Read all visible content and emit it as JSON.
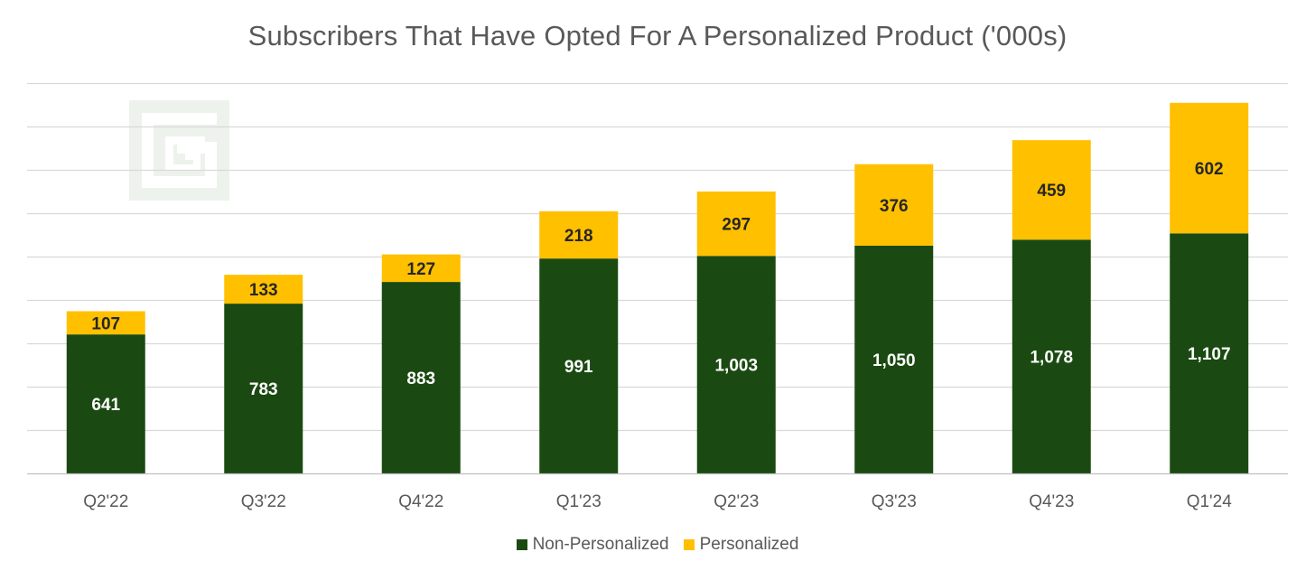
{
  "chart_data": {
    "type": "bar",
    "stacked": true,
    "title": "Subscribers That Have Opted For A Personalized Product ('000s)",
    "categories": [
      "Q2'22",
      "Q3'22",
      "Q4'22",
      "Q1'23",
      "Q2'23",
      "Q3'23",
      "Q4'23",
      "Q1'24"
    ],
    "series": [
      {
        "name": "Non-Personalized",
        "color": "#1a4a11",
        "label_color": "#ffffff",
        "values": [
          641,
          783,
          883,
          991,
          1003,
          1050,
          1078,
          1107
        ],
        "labels": [
          "641",
          "783",
          "883",
          "991",
          "1,003",
          "1,050",
          "1,078",
          "1,107"
        ]
      },
      {
        "name": "Personalized",
        "color": "#ffc000",
        "label_color": "#262626",
        "values": [
          107,
          133,
          127,
          218,
          297,
          376,
          459,
          602
        ],
        "labels": [
          "107",
          "133",
          "127",
          "218",
          "297",
          "376",
          "459",
          "602"
        ]
      }
    ],
    "ylim": [
      0,
      1800
    ],
    "grid_step": 200,
    "grid": true,
    "y_tick_labels_shown": false,
    "legend_position": "bottom"
  }
}
